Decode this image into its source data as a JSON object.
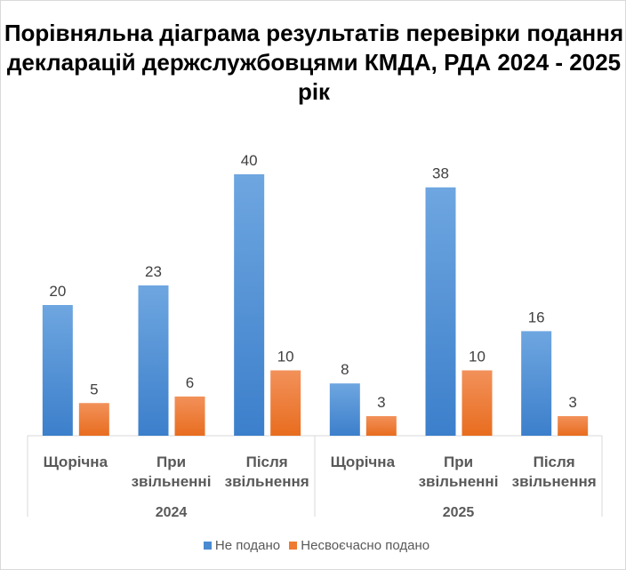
{
  "chart_data": {
    "type": "bar",
    "title": "Порівняльна діаграма результатів перевірки подання декларацій держслужбовцями КМДА, РДА 2024 - 2025 рік",
    "groups": [
      {
        "label": "2024",
        "categories": [
          "Щорічна",
          "При звільненні",
          "Після звільнення"
        ]
      },
      {
        "label": "2025",
        "categories": [
          "Щорічна",
          "При звільненні",
          "Після звільнення"
        ]
      }
    ],
    "series": [
      {
        "name": "Не подано",
        "color": "#4a8ad0",
        "values": [
          20,
          23,
          40,
          8,
          38,
          16
        ]
      },
      {
        "name": "Несвоєчасно подано",
        "color": "#ee7b30",
        "values": [
          5,
          6,
          10,
          3,
          10,
          3
        ]
      }
    ],
    "legend": "bottom",
    "grid": false
  }
}
